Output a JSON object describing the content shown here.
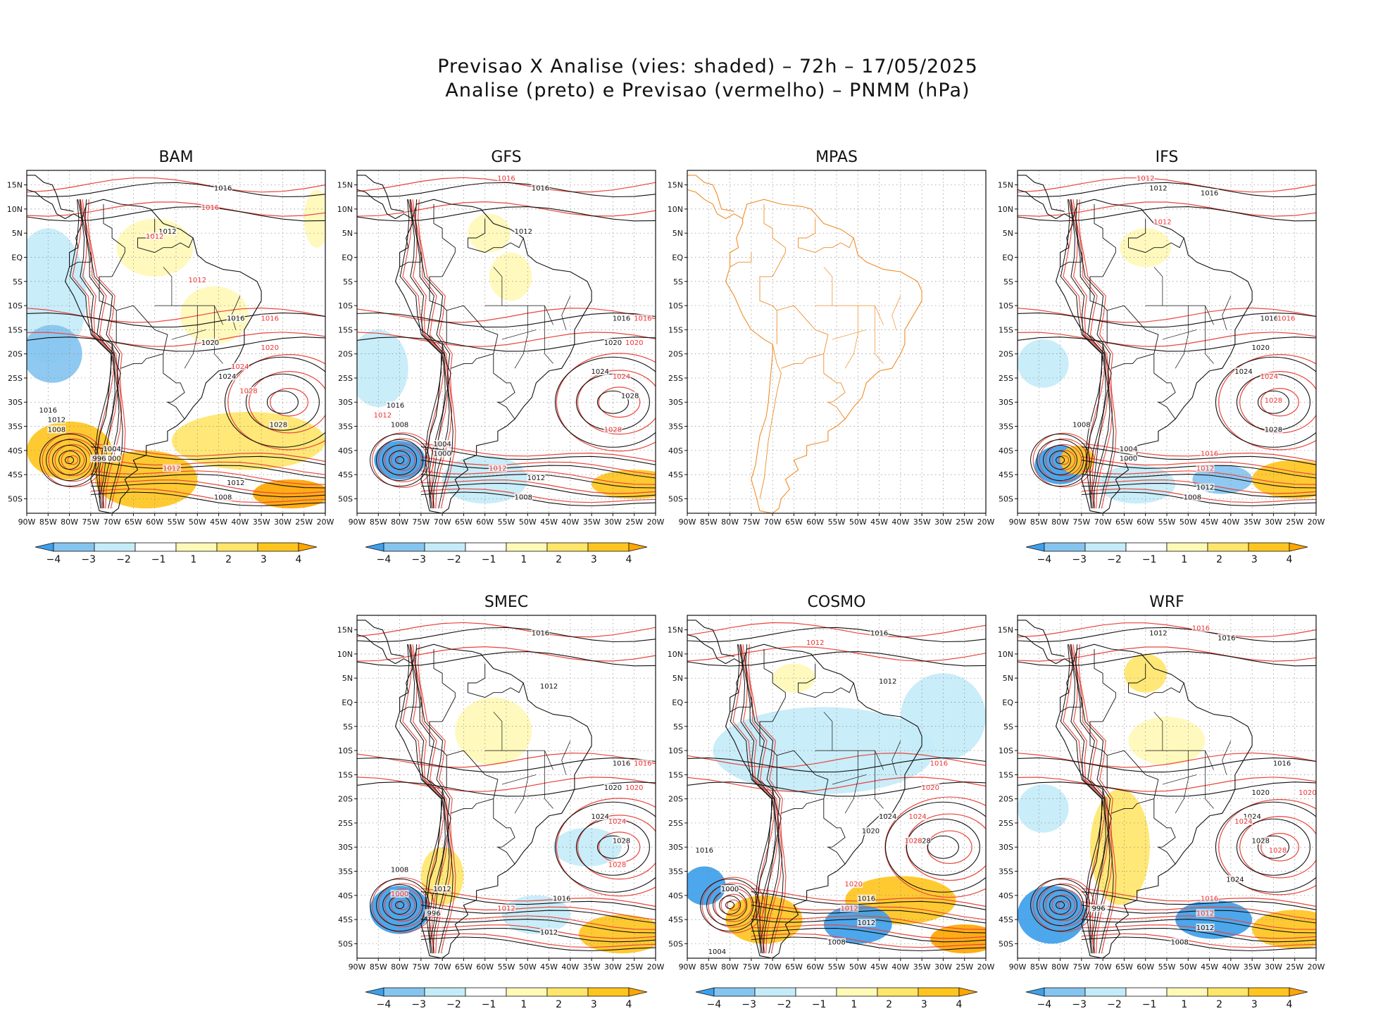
{
  "figure": {
    "title_line1": "Previsao X Analise (vies: shaded) – 72h – 17/05/2025",
    "title_line2": "Analise (preto) e Previsao (vermelho) – PNMM (hPa)"
  },
  "colors": {
    "bias_neg4": "#3da0ea",
    "bias_neg3": "#86c4f0",
    "bias_neg2": "#c4ecf8",
    "bias_neg1": "#ffffff",
    "bias_pos1": "#fff9b8",
    "bias_pos2": "#ffe66b",
    "bias_pos3": "#ffc51f",
    "bias_pos4": "#ffa600",
    "analysis_contour": "#111111",
    "forecast_contour": "#e8453c",
    "coastline_plain": "#f08c28"
  },
  "chart_data": {
    "type": "heatmap",
    "variable": "PNMM bias (hPa)",
    "lon_ticks": [
      "90W",
      "85W",
      "80W",
      "75W",
      "70W",
      "65W",
      "60W",
      "55W",
      "50W",
      "45W",
      "40W",
      "35W",
      "30W",
      "25W",
      "20W"
    ],
    "lat_ticks": [
      "15N",
      "10N",
      "5N",
      "EQ",
      "5S",
      "10S",
      "15S",
      "20S",
      "25S",
      "30S",
      "35S",
      "40S",
      "45S",
      "50S"
    ],
    "xlim": [
      -90,
      -20
    ],
    "ylim": [
      -53,
      18
    ],
    "colorbar": {
      "labels": [
        "-4",
        "-3",
        "-2",
        "-1",
        "1",
        "2",
        "3",
        "4"
      ],
      "colors": [
        "#3da0ea",
        "#86c4f0",
        "#c4ecf8",
        "#ffffff",
        "#fff9b8",
        "#ffe66b",
        "#ffc51f",
        "#ffa600"
      ]
    },
    "panels": [
      {
        "name": "BAM",
        "has_data": true,
        "has_colorbar": true,
        "bias_regions": [
          {
            "lon": -85,
            "lat": -8,
            "rx": 9,
            "ry": 14,
            "level": -2
          },
          {
            "lon": -84,
            "lat": -20,
            "rx": 7,
            "ry": 6,
            "level": -3
          },
          {
            "lon": -80,
            "lat": -40,
            "rx": 10,
            "ry": 6,
            "level": 3
          },
          {
            "lon": -62,
            "lat": -46,
            "rx": 12,
            "ry": 6,
            "level": 3
          },
          {
            "lon": -38,
            "lat": -38,
            "rx": 18,
            "ry": 6,
            "level": 2
          },
          {
            "lon": -28,
            "lat": -49,
            "rx": 9,
            "ry": 3,
            "level": 4
          },
          {
            "lon": -60,
            "lat": 2,
            "rx": 9,
            "ry": 6,
            "level": 1
          },
          {
            "lon": -46,
            "lat": -12,
            "rx": 8,
            "ry": 6,
            "level": 1
          },
          {
            "lon": -22,
            "lat": 8,
            "rx": 3,
            "ry": 6,
            "level": 1
          }
        ],
        "black_labels": [
          {
            "text": "1016",
            "lon": -44,
            "lat": 14
          },
          {
            "text": "1012",
            "lon": -57,
            "lat": 5
          },
          {
            "text": "1016",
            "lon": -41,
            "lat": -13
          },
          {
            "text": "1020",
            "lon": -47,
            "lat": -18
          },
          {
            "text": "1024",
            "lon": -43,
            "lat": -25
          },
          {
            "text": "1028",
            "lon": -31,
            "lat": -35
          },
          {
            "text": "1016",
            "lon": -85,
            "lat": -32
          },
          {
            "text": "1012",
            "lon": -83,
            "lat": -34
          },
          {
            "text": "1008",
            "lon": -83,
            "lat": -36
          },
          {
            "text": "1004",
            "lon": -70,
            "lat": -40
          },
          {
            "text": "1000",
            "lon": -70,
            "lat": -42
          },
          {
            "text": "996",
            "lon": -73,
            "lat": -42
          },
          {
            "text": "1012",
            "lon": -41,
            "lat": -47
          },
          {
            "text": "1008",
            "lon": -44,
            "lat": -50
          }
        ],
        "red_labels": [
          {
            "text": "1016",
            "lon": -47,
            "lat": 10
          },
          {
            "text": "1012",
            "lon": -60,
            "lat": 4
          },
          {
            "text": "1012",
            "lon": -50,
            "lat": -5
          },
          {
            "text": "1016",
            "lon": -33,
            "lat": -13
          },
          {
            "text": "1020",
            "lon": -33,
            "lat": -19
          },
          {
            "text": "1024",
            "lon": -40,
            "lat": -23
          },
          {
            "text": "1028",
            "lon": -38,
            "lat": -28
          },
          {
            "text": "1012",
            "lon": -56,
            "lat": -44
          }
        ]
      },
      {
        "name": "GFS",
        "has_data": true,
        "has_colorbar": true,
        "bias_regions": [
          {
            "lon": -85,
            "lat": -23,
            "rx": 7,
            "ry": 8,
            "level": -2
          },
          {
            "lon": -80,
            "lat": -42,
            "rx": 6,
            "ry": 4,
            "level": -4
          },
          {
            "lon": -60,
            "lat": -46,
            "rx": 10,
            "ry": 5,
            "level": -2
          },
          {
            "lon": -60,
            "lat": -18,
            "rx": 10,
            "ry": 8,
            "level": -1
          },
          {
            "lon": -25,
            "lat": -47,
            "rx": 10,
            "ry": 3,
            "level": 3
          },
          {
            "lon": -59,
            "lat": 5,
            "rx": 5,
            "ry": 4,
            "level": 1
          },
          {
            "lon": -54,
            "lat": -4,
            "rx": 5,
            "ry": 5,
            "level": 1
          }
        ],
        "black_labels": [
          {
            "text": "1016",
            "lon": -47,
            "lat": 14
          },
          {
            "text": "1012",
            "lon": -51,
            "lat": 5
          },
          {
            "text": "1016",
            "lon": -28,
            "lat": -13
          },
          {
            "text": "1020",
            "lon": -30,
            "lat": -18
          },
          {
            "text": "1024",
            "lon": -33,
            "lat": -24
          },
          {
            "text": "1028",
            "lon": -26,
            "lat": -29
          },
          {
            "text": "1016",
            "lon": -81,
            "lat": -31
          },
          {
            "text": "1008",
            "lon": -80,
            "lat": -35
          },
          {
            "text": "1004",
            "lon": -70,
            "lat": -39
          },
          {
            "text": "1000",
            "lon": -70,
            "lat": -41
          },
          {
            "text": "1012",
            "lon": -48,
            "lat": -46
          },
          {
            "text": "1008",
            "lon": -51,
            "lat": -50
          }
        ],
        "red_labels": [
          {
            "text": "1016",
            "lon": -55,
            "lat": 16
          },
          {
            "text": "1016",
            "lon": -23,
            "lat": -13
          },
          {
            "text": "1020",
            "lon": -25,
            "lat": -18
          },
          {
            "text": "1024",
            "lon": -28,
            "lat": -25
          },
          {
            "text": "1028",
            "lon": -30,
            "lat": -36
          },
          {
            "text": "1012",
            "lon": -84,
            "lat": -33
          },
          {
            "text": "1012",
            "lon": -57,
            "lat": -44
          }
        ]
      },
      {
        "name": "MPAS",
        "has_data": false,
        "has_colorbar": false,
        "bias_regions": [],
        "black_labels": [],
        "red_labels": []
      },
      {
        "name": "IFS",
        "has_data": true,
        "has_colorbar": true,
        "bias_regions": [
          {
            "lon": -84,
            "lat": -22,
            "rx": 6,
            "ry": 5,
            "level": -2
          },
          {
            "lon": -80,
            "lat": -43,
            "rx": 6,
            "ry": 4,
            "level": -4
          },
          {
            "lon": -42,
            "lat": -46,
            "rx": 7,
            "ry": 3,
            "level": -3
          },
          {
            "lon": -62,
            "lat": -47,
            "rx": 9,
            "ry": 4,
            "level": -2
          },
          {
            "lon": -25,
            "lat": -46,
            "rx": 10,
            "ry": 4,
            "level": 3
          },
          {
            "lon": -76,
            "lat": -42,
            "rx": 4,
            "ry": 3,
            "level": 3
          },
          {
            "lon": -60,
            "lat": 2,
            "rx": 6,
            "ry": 4,
            "level": 1
          }
        ],
        "black_labels": [
          {
            "text": "1016",
            "lon": -45,
            "lat": 13
          },
          {
            "text": "1012",
            "lon": -57,
            "lat": 14
          },
          {
            "text": "1016",
            "lon": -31,
            "lat": -13
          },
          {
            "text": "1020",
            "lon": -33,
            "lat": -19
          },
          {
            "text": "1024",
            "lon": -37,
            "lat": -24
          },
          {
            "text": "1028",
            "lon": -30,
            "lat": -36
          },
          {
            "text": "1008",
            "lon": -75,
            "lat": -35
          },
          {
            "text": "1004",
            "lon": -64,
            "lat": -40
          },
          {
            "text": "1000",
            "lon": -64,
            "lat": -42
          },
          {
            "text": "1012",
            "lon": -46,
            "lat": -48
          },
          {
            "text": "1008",
            "lon": -49,
            "lat": -50
          }
        ],
        "red_labels": [
          {
            "text": "1012",
            "lon": -60,
            "lat": 16
          },
          {
            "text": "1012",
            "lon": -56,
            "lat": 7
          },
          {
            "text": "1016",
            "lon": -27,
            "lat": -13
          },
          {
            "text": "1024",
            "lon": -31,
            "lat": -25
          },
          {
            "text": "1028",
            "lon": -30,
            "lat": -30
          },
          {
            "text": "1016",
            "lon": -45,
            "lat": -41
          },
          {
            "text": "1012",
            "lon": -46,
            "lat": -44
          }
        ]
      },
      {
        "name": "SMEC",
        "has_data": true,
        "has_colorbar": true,
        "bias_regions": [
          {
            "lon": -80,
            "lat": -43,
            "rx": 7,
            "ry": 5,
            "level": -4
          },
          {
            "lon": -70,
            "lat": -36,
            "rx": 5,
            "ry": 6,
            "level": 2
          },
          {
            "lon": -28,
            "lat": -48,
            "rx": 10,
            "ry": 4,
            "level": 3
          },
          {
            "lon": -58,
            "lat": -6,
            "rx": 9,
            "ry": 7,
            "level": 1
          },
          {
            "lon": -36,
            "lat": -30,
            "rx": 8,
            "ry": 4,
            "level": -2
          },
          {
            "lon": -48,
            "lat": -44,
            "rx": 8,
            "ry": 4,
            "level": -2
          }
        ],
        "black_labels": [
          {
            "text": "1016",
            "lon": -47,
            "lat": 14
          },
          {
            "text": "1012",
            "lon": -45,
            "lat": 3
          },
          {
            "text": "1016",
            "lon": -28,
            "lat": -13
          },
          {
            "text": "1020",
            "lon": -30,
            "lat": -18
          },
          {
            "text": "1024",
            "lon": -33,
            "lat": -24
          },
          {
            "text": "1028",
            "lon": -28,
            "lat": -29
          },
          {
            "text": "1016",
            "lon": -42,
            "lat": -41
          },
          {
            "text": "1012",
            "lon": -45,
            "lat": -48
          },
          {
            "text": "1008",
            "lon": -80,
            "lat": -35
          },
          {
            "text": "1012",
            "lon": -70,
            "lat": -39
          },
          {
            "text": "996",
            "lon": -72,
            "lat": -44
          }
        ],
        "red_labels": [
          {
            "text": "1016",
            "lon": -23,
            "lat": -13
          },
          {
            "text": "1020",
            "lon": -25,
            "lat": -18
          },
          {
            "text": "1024",
            "lon": -29,
            "lat": -25
          },
          {
            "text": "1028",
            "lon": -29,
            "lat": -34
          },
          {
            "text": "1012",
            "lon": -55,
            "lat": -43
          },
          {
            "text": "1000",
            "lon": -80,
            "lat": -40
          }
        ]
      },
      {
        "name": "COSMO",
        "has_data": true,
        "has_colorbar": true,
        "bias_regions": [
          {
            "lon": -58,
            "lat": -10,
            "rx": 26,
            "ry": 9,
            "level": -2
          },
          {
            "lon": -30,
            "lat": -3,
            "rx": 10,
            "ry": 9,
            "level": -2
          },
          {
            "lon": -86,
            "lat": -38,
            "rx": 5,
            "ry": 4,
            "level": -4
          },
          {
            "lon": -72,
            "lat": -45,
            "rx": 9,
            "ry": 5,
            "level": 3
          },
          {
            "lon": -40,
            "lat": -41,
            "rx": 13,
            "ry": 5,
            "level": 3
          },
          {
            "lon": -50,
            "lat": -46,
            "rx": 8,
            "ry": 4,
            "level": -4
          },
          {
            "lon": -25,
            "lat": -49,
            "rx": 8,
            "ry": 3,
            "level": 4
          },
          {
            "lon": -65,
            "lat": 5,
            "rx": 5,
            "ry": 3,
            "level": 1
          }
        ],
        "black_labels": [
          {
            "text": "1016",
            "lon": -45,
            "lat": 14
          },
          {
            "text": "1012",
            "lon": -43,
            "lat": 4
          },
          {
            "text": "1016",
            "lon": -86,
            "lat": -31
          },
          {
            "text": "1020",
            "lon": -47,
            "lat": -27
          },
          {
            "text": "1024",
            "lon": -43,
            "lat": -24
          },
          {
            "text": "1028",
            "lon": -35,
            "lat": -29
          },
          {
            "text": "1016",
            "lon": -48,
            "lat": -41
          },
          {
            "text": "1012",
            "lon": -48,
            "lat": -46
          },
          {
            "text": "1000",
            "lon": -80,
            "lat": -39
          },
          {
            "text": "1004",
            "lon": -83,
            "lat": -52
          },
          {
            "text": "1008",
            "lon": -55,
            "lat": -50
          }
        ],
        "red_labels": [
          {
            "text": "1012",
            "lon": -60,
            "lat": 12
          },
          {
            "text": "1016",
            "lon": -31,
            "lat": -13
          },
          {
            "text": "1020",
            "lon": -33,
            "lat": -18
          },
          {
            "text": "1024",
            "lon": -36,
            "lat": -24
          },
          {
            "text": "1028",
            "lon": -37,
            "lat": -29
          },
          {
            "text": "1020",
            "lon": -51,
            "lat": -38
          },
          {
            "text": "1012",
            "lon": -52,
            "lat": -43
          }
        ]
      },
      {
        "name": "WRF",
        "has_data": true,
        "has_colorbar": true,
        "bias_regions": [
          {
            "lon": -82,
            "lat": -44,
            "rx": 8,
            "ry": 6,
            "level": -4
          },
          {
            "lon": -44,
            "lat": -45,
            "rx": 9,
            "ry": 4,
            "level": -4
          },
          {
            "lon": -66,
            "lat": -30,
            "rx": 7,
            "ry": 12,
            "level": 2
          },
          {
            "lon": -25,
            "lat": -47,
            "rx": 10,
            "ry": 4,
            "level": 3
          },
          {
            "lon": -60,
            "lat": 6,
            "rx": 5,
            "ry": 4,
            "level": 2
          },
          {
            "lon": -55,
            "lat": -8,
            "rx": 9,
            "ry": 5,
            "level": 1
          },
          {
            "lon": -84,
            "lat": -22,
            "rx": 6,
            "ry": 5,
            "level": -2
          }
        ],
        "black_labels": [
          {
            "text": "1016",
            "lon": -41,
            "lat": 13
          },
          {
            "text": "1012",
            "lon": -57,
            "lat": 14
          },
          {
            "text": "1016",
            "lon": -28,
            "lat": -13
          },
          {
            "text": "1020",
            "lon": -33,
            "lat": -19
          },
          {
            "text": "1024",
            "lon": -35,
            "lat": -24
          },
          {
            "text": "1028",
            "lon": -33,
            "lat": -29
          },
          {
            "text": "1024",
            "lon": -39,
            "lat": -37
          },
          {
            "text": "1012",
            "lon": -46,
            "lat": -47
          },
          {
            "text": "1008",
            "lon": -52,
            "lat": -50
          },
          {
            "text": "996",
            "lon": -71,
            "lat": -43
          }
        ],
        "red_labels": [
          {
            "text": "1016",
            "lon": -47,
            "lat": 15
          },
          {
            "text": "1020",
            "lon": -22,
            "lat": -19
          },
          {
            "text": "1024",
            "lon": -37,
            "lat": -25
          },
          {
            "text": "1028",
            "lon": -29,
            "lat": -31
          },
          {
            "text": "1016",
            "lon": -45,
            "lat": -41
          },
          {
            "text": "1012",
            "lon": -46,
            "lat": -44
          }
        ]
      }
    ]
  }
}
